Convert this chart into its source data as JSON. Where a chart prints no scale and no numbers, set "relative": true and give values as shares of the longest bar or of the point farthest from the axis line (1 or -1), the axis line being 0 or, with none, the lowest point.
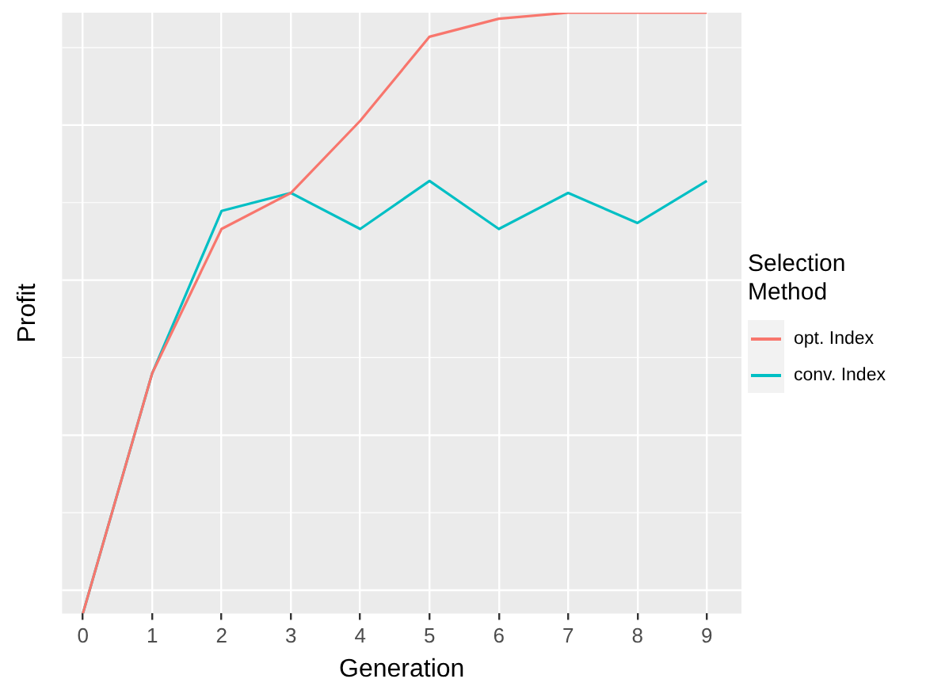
{
  "chart_data": {
    "type": "line",
    "xlabel": "Generation",
    "ylabel": "Profit",
    "legend_title": "Selection Method",
    "relative": true,
    "x": [
      0,
      1,
      2,
      3,
      4,
      5,
      6,
      7,
      8,
      9
    ],
    "xlim": [
      -0.3,
      9.5
    ],
    "xticks": [
      0,
      1,
      2,
      3,
      4,
      5,
      6,
      7,
      8,
      9
    ],
    "grid": true,
    "legend": "right",
    "marker": "none",
    "series": [
      {
        "name": "opt. Index",
        "color": "#f8766d",
        "values": [
          0,
          0.4,
          0.64,
          0.7,
          0.82,
          0.96,
          0.99,
          1.0,
          1.0,
          1.0
        ]
      },
      {
        "name": "conv. Index",
        "color": "#00bfc4",
        "values": [
          0,
          0.4,
          0.67,
          0.7,
          0.64,
          0.72,
          0.64,
          0.7,
          0.65,
          0.72
        ]
      }
    ]
  }
}
